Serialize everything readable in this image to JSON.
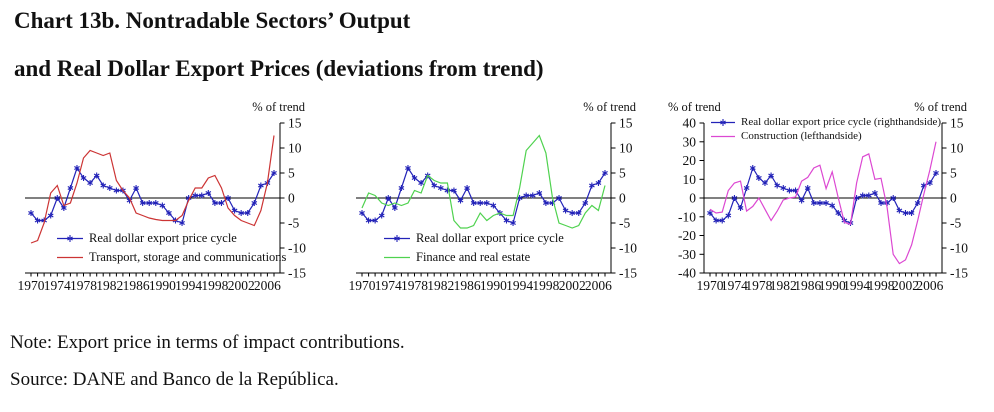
{
  "title_line1": "Chart 13b. Nontradable Sectors’ Output",
  "title_line2": "and Real Dollar Export Prices (deviations from trend)",
  "note": "Note: Export price in terms of impact contributions.",
  "source": "Source: DANE and Banco de la República.",
  "year_start": 1970,
  "xtick_labels": [
    1970,
    1974,
    1978,
    1982,
    1986,
    1990,
    1994,
    1998,
    2002,
    2006
  ],
  "chart_data": [
    {
      "type": "line",
      "x_range": "1970-2007 annual",
      "right_axis": {
        "label": "% of trend",
        "ylim": [
          -15,
          15
        ],
        "yticks": [
          15,
          10,
          5,
          0,
          -5,
          -10,
          -15
        ]
      },
      "grid": false,
      "legend_position": "inside-bottom-left",
      "series": [
        {
          "name": "Real dollar export price cycle",
          "color": "#2323b8",
          "marker": "asterisk",
          "axis": "right",
          "values": [
            -3,
            -4.5,
            -4.5,
            -3.5,
            0,
            -2,
            2,
            6,
            4,
            3,
            4.5,
            2.5,
            2,
            1.5,
            1.5,
            -0.5,
            2,
            -1,
            -1,
            -1,
            -1.5,
            -3,
            -4.5,
            -5,
            0,
            0.5,
            0.5,
            1,
            -1,
            -1,
            0,
            -2.5,
            -3,
            -3,
            -1,
            2.5,
            3,
            5
          ]
        },
        {
          "name": "Transport, storage and communications",
          "color": "#cc3434",
          "marker": "none",
          "axis": "right",
          "values": [
            -9,
            -8.5,
            -5,
            1,
            2.5,
            -1.5,
            -1,
            3,
            8,
            9.5,
            9,
            8.5,
            9,
            3.5,
            1.5,
            0,
            -3,
            -3.5,
            -4,
            -4.3,
            -4.5,
            -4.5,
            -4.5,
            -3.5,
            -0.5,
            2,
            2,
            4,
            4.5,
            2,
            -2,
            -3.5,
            -4.5,
            -5,
            -5.5,
            -2.5,
            3,
            12.5
          ]
        }
      ]
    },
    {
      "type": "line",
      "x_range": "1970-2007 annual",
      "right_axis": {
        "label": "% of trend",
        "ylim": [
          -15,
          15
        ],
        "yticks": [
          15,
          10,
          5,
          0,
          -5,
          -10,
          -15
        ]
      },
      "grid": false,
      "legend_position": "inside-bottom-left",
      "series": [
        {
          "name": "Real dollar export price cycle",
          "color": "#2323b8",
          "marker": "asterisk",
          "axis": "right",
          "values": [
            -3,
            -4.5,
            -4.5,
            -3.5,
            0,
            -2,
            2,
            6,
            4,
            3,
            4.5,
            2.5,
            2,
            1.5,
            1.5,
            -0.5,
            2,
            -1,
            -1,
            -1,
            -1.5,
            -3,
            -4.5,
            -5,
            0,
            0.5,
            0.5,
            1,
            -1,
            -1,
            0,
            -2.5,
            -3,
            -3,
            -1,
            2.5,
            3,
            5
          ]
        },
        {
          "name": "Finance and real estate",
          "color": "#4fd24f",
          "marker": "none",
          "axis": "right",
          "values": [
            -2,
            1,
            0.5,
            -1,
            -1.5,
            -1,
            -1.5,
            -1,
            1.5,
            1,
            4.5,
            3.5,
            3,
            3,
            -4.5,
            -6,
            -6,
            -5.5,
            -3,
            -4.5,
            -3.5,
            -3,
            -3.5,
            -3.5,
            2,
            9.5,
            11,
            12.5,
            9,
            0,
            -5,
            -5.5,
            -6,
            -5.5,
            -3,
            -1.5,
            -2.5,
            2.5
          ]
        }
      ]
    },
    {
      "type": "line",
      "x_range": "1970-2007 annual",
      "left_axis": {
        "label": "% of trend",
        "ylim": [
          -40,
          40
        ],
        "yticks": [
          40,
          30,
          20,
          10,
          0,
          -10,
          -20,
          -30,
          -40
        ]
      },
      "right_axis": {
        "label": "% of trend",
        "ylim": [
          -15,
          15
        ],
        "yticks": [
          15,
          10,
          5,
          0,
          -5,
          -10,
          -15
        ]
      },
      "grid": false,
      "legend_position": "inside-top-left",
      "series": [
        {
          "name": "Real dollar export price cycle (righthandside)",
          "color": "#2323b8",
          "marker": "asterisk",
          "axis": "right",
          "values": [
            -3,
            -4.5,
            -4.5,
            -3.5,
            0,
            -2,
            2,
            6,
            4,
            3,
            4.5,
            2.5,
            2,
            1.5,
            1.5,
            -0.5,
            2,
            -1,
            -1,
            -1,
            -1.5,
            -3,
            -4.5,
            -5,
            0,
            0.5,
            0.5,
            1,
            -1,
            -1,
            0,
            -2.5,
            -3,
            -3,
            -1,
            2.5,
            3,
            5
          ]
        },
        {
          "name": "Construction (lefthandside)",
          "color": "#dc48d2",
          "marker": "none",
          "axis": "left",
          "values": [
            -6,
            -8,
            -7.5,
            4,
            8,
            9,
            -7,
            -4.5,
            0,
            -6,
            -12,
            -7,
            -1,
            0,
            0.5,
            9,
            11,
            16,
            17.5,
            5,
            14,
            0,
            -13,
            -14,
            8,
            22,
            23.5,
            10,
            10.5,
            -5,
            -30,
            -35,
            -33,
            -25,
            -12,
            2,
            15,
            30
          ]
        }
      ]
    }
  ]
}
